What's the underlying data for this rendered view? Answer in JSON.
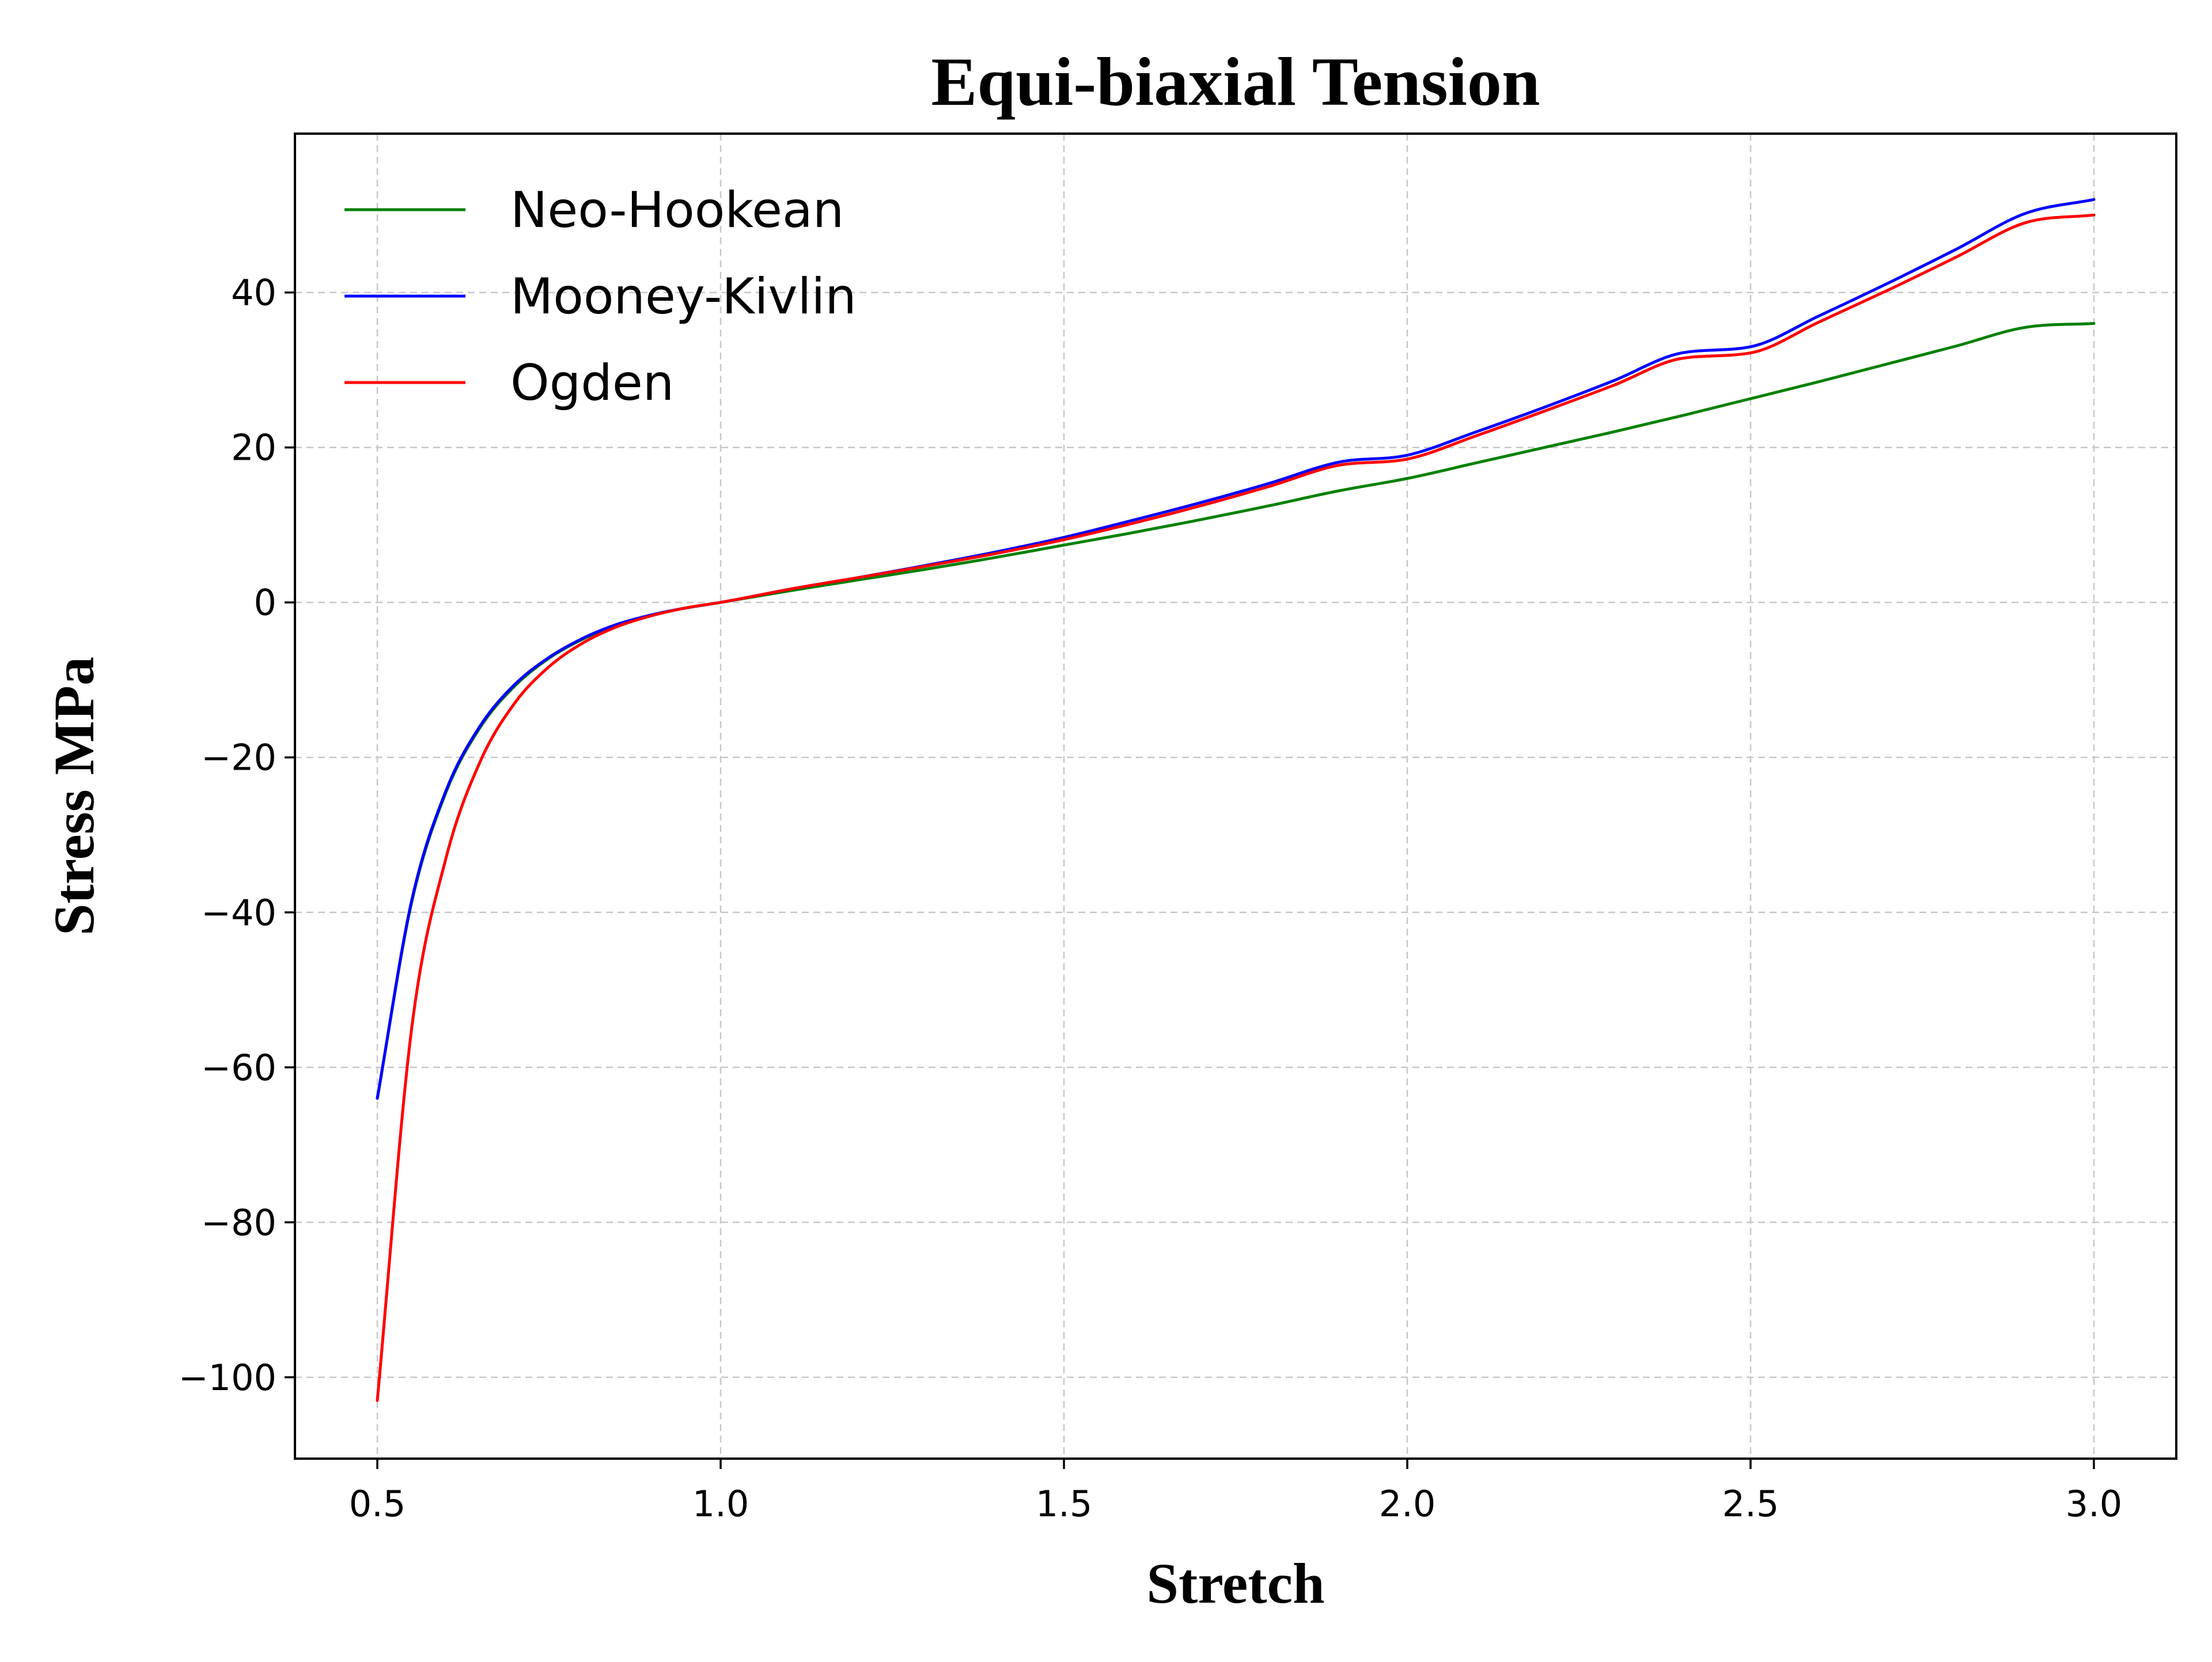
{
  "chart_data": {
    "type": "line",
    "title": "Equi-biaxial Tension",
    "xlabel": "Stretch",
    "ylabel": "Stress MPa",
    "xlim": [
      0.38,
      3.12
    ],
    "ylim": [
      -110.5,
      60.5
    ],
    "xticks": [
      0.5,
      1.0,
      1.5,
      2.0,
      2.5,
      3.0
    ],
    "xtick_labels": [
      "0.5",
      "1.0",
      "1.5",
      "2.0",
      "2.5",
      "3.0"
    ],
    "yticks": [
      -100,
      -80,
      -60,
      -40,
      -20,
      0,
      20,
      40
    ],
    "ytick_labels": [
      "−100",
      "−80",
      "−60",
      "−40",
      "−20",
      "0",
      "20",
      "40"
    ],
    "grid": true,
    "legend_position": "top-left",
    "series": [
      {
        "name": "Neo-Hookean",
        "color": "#008000",
        "x": [
          0.5,
          0.55,
          0.6,
          0.65,
          0.7,
          0.75,
          0.8,
          0.85,
          0.9,
          0.95,
          1.0,
          1.1,
          1.2,
          1.3,
          1.4,
          1.5,
          1.6,
          1.7,
          1.8,
          1.9,
          2.0,
          2.1,
          2.2,
          2.3,
          2.4,
          2.5,
          2.6,
          2.7,
          2.8,
          2.9,
          3.0
        ],
        "y": [
          -64.0,
          -38.7,
          -24.5,
          -16.1,
          -10.8,
          -7.2,
          -4.7,
          -2.9,
          -1.6,
          -0.7,
          0.0,
          1.5,
          2.9,
          4.3,
          5.8,
          7.4,
          9.0,
          10.7,
          12.5,
          14.4,
          16.0,
          18.0,
          20.0,
          22.0,
          24.1,
          26.3,
          28.5,
          30.8,
          33.1,
          35.5,
          36.0
        ]
      },
      {
        "name": "Mooney-Kivlin",
        "color": "#0000ff",
        "x": [
          0.5,
          0.55,
          0.6,
          0.65,
          0.7,
          0.75,
          0.8,
          0.85,
          0.9,
          0.95,
          1.0,
          1.1,
          1.2,
          1.3,
          1.4,
          1.5,
          1.6,
          1.7,
          1.8,
          1.9,
          2.0,
          2.1,
          2.2,
          2.3,
          2.4,
          2.5,
          2.6,
          2.7,
          2.8,
          2.9,
          3.0
        ],
        "y": [
          -64.0,
          -38.5,
          -24.3,
          -15.9,
          -10.6,
          -7.1,
          -4.6,
          -2.8,
          -1.6,
          -0.7,
          0.0,
          1.7,
          3.2,
          4.8,
          6.5,
          8.4,
          10.6,
          12.9,
          15.4,
          18.1,
          19.0,
          22.0,
          25.2,
          28.6,
          32.2,
          33.0,
          37.0,
          41.2,
          45.6,
          50.2,
          52.0
        ]
      },
      {
        "name": "Ogden",
        "color": "#ff0000",
        "x": [
          0.5,
          0.55,
          0.6,
          0.65,
          0.7,
          0.75,
          0.8,
          0.85,
          0.9,
          0.95,
          1.0,
          1.1,
          1.2,
          1.3,
          1.4,
          1.5,
          1.6,
          1.7,
          1.8,
          1.9,
          2.0,
          2.1,
          2.2,
          2.3,
          2.4,
          2.5,
          2.6,
          2.7,
          2.8,
          2.9,
          3.0
        ],
        "y": [
          -103.0,
          -55.0,
          -33.0,
          -20.5,
          -13.0,
          -8.3,
          -5.2,
          -3.1,
          -1.7,
          -0.7,
          0.0,
          1.7,
          3.2,
          4.7,
          6.3,
          8.1,
          10.2,
          12.5,
          15.0,
          17.7,
          18.5,
          21.5,
          24.7,
          28.0,
          31.5,
          32.2,
          36.2,
          40.3,
          44.6,
          49.0,
          50.0
        ]
      }
    ]
  }
}
